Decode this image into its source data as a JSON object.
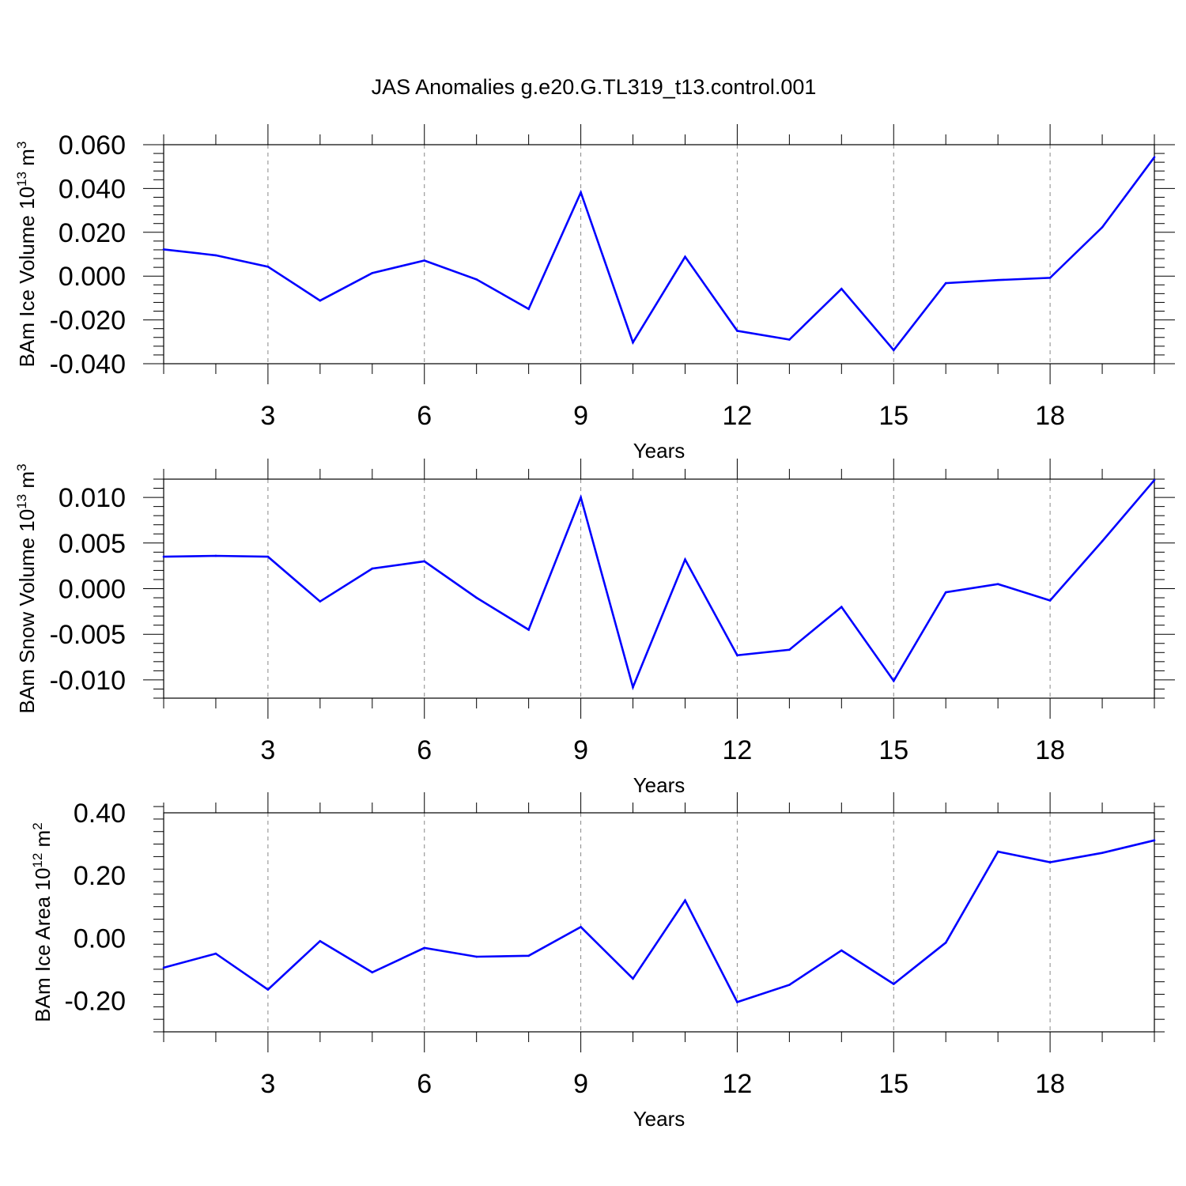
{
  "title": "JAS Anomalies g.e20.G.TL319_t13.control.001",
  "colors": {
    "series": "#0000ff",
    "frame": "#000000",
    "grid": "#888888"
  },
  "chart_data": [
    {
      "type": "line",
      "ylabel": {
        "main": "BAm Ice Volume 10",
        "exp": "13",
        "unit": " m",
        "unit_exp": "3"
      },
      "xlabel": "Years",
      "xlim": [
        1,
        20
      ],
      "xticks": [
        3,
        6,
        9,
        12,
        15,
        18
      ],
      "xticklabels": [
        "3",
        "6",
        "9",
        "12",
        "15",
        "18"
      ],
      "ylim": [
        -0.04,
        0.06
      ],
      "yticks": [
        -0.04,
        -0.02,
        0.0,
        0.02,
        0.04,
        0.06
      ],
      "yticklabels": [
        "-0.040",
        "-0.020",
        "0.000",
        "0.020",
        "0.040",
        "0.060"
      ],
      "grid": "x dashed",
      "x": [
        1,
        2,
        3,
        4,
        5,
        6,
        7,
        8,
        9,
        10,
        11,
        12,
        13,
        14,
        15,
        16,
        17,
        18,
        19,
        20
      ],
      "values": [
        0.0122,
        0.0095,
        0.0043,
        -0.0112,
        0.0014,
        0.0071,
        -0.0015,
        -0.015,
        0.0382,
        -0.0303,
        0.0088,
        -0.025,
        -0.029,
        -0.0058,
        -0.0338,
        -0.0032,
        -0.0018,
        -0.0008,
        0.0223,
        0.0543
      ]
    },
    {
      "type": "line",
      "ylabel": {
        "main": "BAm Snow Volume 10",
        "exp": "13",
        "unit": " m",
        "unit_exp": "3"
      },
      "xlabel": "Years",
      "xlim": [
        1,
        20
      ],
      "xticks": [
        3,
        6,
        9,
        12,
        15,
        18
      ],
      "xticklabels": [
        "3",
        "6",
        "9",
        "12",
        "15",
        "18"
      ],
      "ylim": [
        -0.012,
        0.012
      ],
      "yticks": [
        -0.01,
        -0.005,
        0.0,
        0.005,
        0.01
      ],
      "yticklabels": [
        "-0.010",
        "-0.005",
        "0.000",
        "0.005",
        "0.010"
      ],
      "grid": "x dashed",
      "x": [
        1,
        2,
        3,
        4,
        5,
        6,
        7,
        8,
        9,
        10,
        11,
        12,
        13,
        14,
        15,
        16,
        17,
        18,
        19,
        20
      ],
      "values": [
        0.0035,
        0.0036,
        0.0035,
        -0.0014,
        0.0022,
        0.003,
        -0.001,
        -0.0045,
        0.01,
        -0.0108,
        0.0032,
        -0.0073,
        -0.0067,
        -0.002,
        -0.0101,
        -0.0004,
        0.0005,
        -0.0013,
        0.0052,
        0.0119
      ]
    },
    {
      "type": "line",
      "ylabel": {
        "main": "BAm Ice Area 10",
        "exp": "12",
        "unit": " m",
        "unit_exp": "2"
      },
      "xlabel": "Years",
      "xlim": [
        1,
        20
      ],
      "xticks": [
        3,
        6,
        9,
        12,
        15,
        18
      ],
      "xticklabels": [
        "3",
        "6",
        "9",
        "12",
        "15",
        "18"
      ],
      "ylim": [
        -0.3,
        0.4
      ],
      "yticks": [
        -0.2,
        0.0,
        0.2,
        0.4
      ],
      "yticklabels": [
        "-0.20",
        "0.00",
        "0.20",
        "0.40"
      ],
      "grid": "x dashed",
      "x": [
        1,
        2,
        3,
        4,
        5,
        6,
        7,
        8,
        9,
        10,
        11,
        12,
        13,
        14,
        15,
        16,
        17,
        18,
        19,
        20
      ],
      "values": [
        -0.095,
        -0.05,
        -0.165,
        -0.01,
        -0.11,
        -0.032,
        -0.06,
        -0.057,
        0.035,
        -0.13,
        0.12,
        -0.205,
        -0.15,
        -0.04,
        -0.147,
        -0.015,
        0.276,
        0.242,
        0.272,
        0.312
      ]
    }
  ]
}
